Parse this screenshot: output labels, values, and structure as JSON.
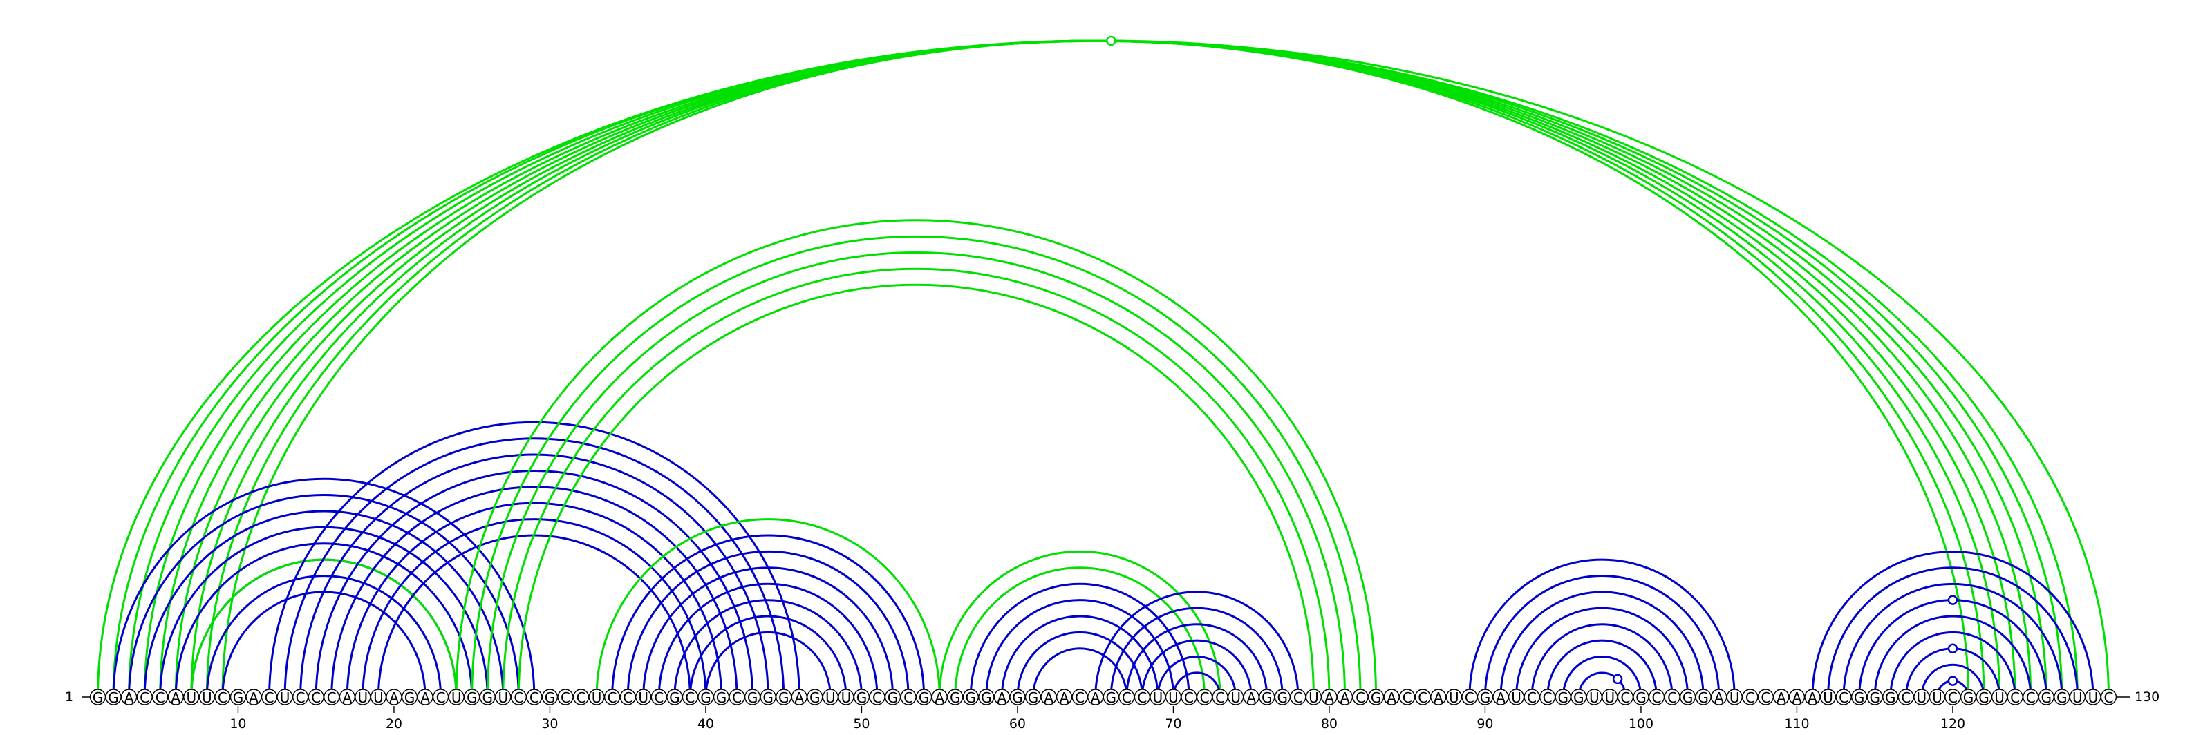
{
  "sequence": "GGACCAUUCGACUCCCAUUAGACUGGUCCGCCUCCUCGCGGCGGGAGUUGCGCGAGGGAGGAACAGCCUUCCCUAGGCUAACGACCAUCGAUCCGGUUCGCCGGAUCCAAAUCGGGCUUCGGUCCGGUUC",
  "start_label": "1",
  "end_label": "130",
  "ticks": [
    "10",
    "20",
    "30",
    "40",
    "50",
    "60",
    "70",
    "80",
    "90",
    "100",
    "110",
    "120"
  ],
  "colors": {
    "blue": "#0000cc",
    "green": "#00e000",
    "backbone": "#000000"
  },
  "pairs": [
    {
      "i": 1,
      "j": 130,
      "color": "green"
    },
    {
      "i": 2,
      "j": 128,
      "color": "green"
    },
    {
      "i": 3,
      "j": 127,
      "color": "green"
    },
    {
      "i": 4,
      "j": 126,
      "color": "green"
    },
    {
      "i": 5,
      "j": 125,
      "color": "green"
    },
    {
      "i": 6,
      "j": 124,
      "color": "green"
    },
    {
      "i": 7,
      "j": 123,
      "color": "green"
    },
    {
      "i": 8,
      "j": 122,
      "color": "green"
    },
    {
      "i": 9,
      "j": 121,
      "color": "green"
    },
    {
      "i": 2,
      "j": 29,
      "color": "blue"
    },
    {
      "i": 3,
      "j": 28,
      "color": "blue"
    },
    {
      "i": 4,
      "j": 27,
      "color": "blue"
    },
    {
      "i": 5,
      "j": 26,
      "color": "blue"
    },
    {
      "i": 6,
      "j": 25,
      "color": "blue"
    },
    {
      "i": 7,
      "j": 24,
      "color": "blue"
    },
    {
      "i": 8,
      "j": 23,
      "color": "blue"
    },
    {
      "i": 9,
      "j": 22,
      "color": "blue"
    },
    {
      "i": 7,
      "j": 24,
      "color": "green"
    },
    {
      "i": 12,
      "j": 46,
      "color": "blue"
    },
    {
      "i": 13,
      "j": 45,
      "color": "blue"
    },
    {
      "i": 14,
      "j": 44,
      "color": "blue"
    },
    {
      "i": 15,
      "j": 43,
      "color": "blue"
    },
    {
      "i": 16,
      "j": 42,
      "color": "blue"
    },
    {
      "i": 17,
      "j": 41,
      "color": "blue"
    },
    {
      "i": 18,
      "j": 40,
      "color": "blue"
    },
    {
      "i": 19,
      "j": 39,
      "color": "blue"
    },
    {
      "i": 24,
      "j": 83,
      "color": "green"
    },
    {
      "i": 25,
      "j": 82,
      "color": "green"
    },
    {
      "i": 26,
      "j": 81,
      "color": "green"
    },
    {
      "i": 27,
      "j": 80,
      "color": "green"
    },
    {
      "i": 28,
      "j": 79,
      "color": "green"
    },
    {
      "i": 33,
      "j": 55,
      "color": "green"
    },
    {
      "i": 34,
      "j": 54,
      "color": "blue"
    },
    {
      "i": 35,
      "j": 53,
      "color": "blue"
    },
    {
      "i": 36,
      "j": 52,
      "color": "blue"
    },
    {
      "i": 37,
      "j": 51,
      "color": "blue"
    },
    {
      "i": 38,
      "j": 50,
      "color": "blue"
    },
    {
      "i": 39,
      "j": 49,
      "color": "blue"
    },
    {
      "i": 40,
      "j": 48,
      "color": "blue"
    },
    {
      "i": 55,
      "j": 73,
      "color": "green"
    },
    {
      "i": 56,
      "j": 72,
      "color": "green"
    },
    {
      "i": 57,
      "j": 71,
      "color": "blue"
    },
    {
      "i": 58,
      "j": 70,
      "color": "blue"
    },
    {
      "i": 59,
      "j": 69,
      "color": "blue"
    },
    {
      "i": 60,
      "j": 68,
      "color": "blue"
    },
    {
      "i": 61,
      "j": 67,
      "color": "blue"
    },
    {
      "i": 65,
      "j": 78,
      "color": "blue"
    },
    {
      "i": 66,
      "j": 77,
      "color": "blue"
    },
    {
      "i": 67,
      "j": 76,
      "color": "blue"
    },
    {
      "i": 68,
      "j": 75,
      "color": "blue"
    },
    {
      "i": 69,
      "j": 74,
      "color": "blue"
    },
    {
      "i": 70,
      "j": 73,
      "color": "blue"
    },
    {
      "i": 89,
      "j": 106,
      "color": "blue"
    },
    {
      "i": 90,
      "j": 105,
      "color": "blue"
    },
    {
      "i": 91,
      "j": 104,
      "color": "blue"
    },
    {
      "i": 92,
      "j": 103,
      "color": "blue"
    },
    {
      "i": 93,
      "j": 102,
      "color": "blue"
    },
    {
      "i": 94,
      "j": 101,
      "color": "blue"
    },
    {
      "i": 95,
      "j": 100,
      "color": "blue"
    },
    {
      "i": 96,
      "j": 99,
      "color": "blue"
    },
    {
      "i": 111,
      "j": 129,
      "color": "blue"
    },
    {
      "i": 112,
      "j": 128,
      "color": "blue"
    },
    {
      "i": 113,
      "j": 127,
      "color": "blue"
    },
    {
      "i": 114,
      "j": 126,
      "color": "blue"
    },
    {
      "i": 115,
      "j": 125,
      "color": "blue"
    },
    {
      "i": 116,
      "j": 124,
      "color": "blue"
    },
    {
      "i": 117,
      "j": 123,
      "color": "blue"
    },
    {
      "i": 118,
      "j": 122,
      "color": "blue"
    },
    {
      "i": 119,
      "j": 121,
      "color": "blue"
    }
  ],
  "markers": [
    {
      "pos": 66,
      "arc": {
        "i": 1,
        "j": 130
      },
      "color": "green"
    },
    {
      "pos": 98.5,
      "arc": {
        "i": 96,
        "j": 99
      },
      "color": "blue"
    },
    {
      "pos": 120,
      "arc": {
        "i": 119,
        "j": 121
      },
      "color": "blue"
    },
    {
      "pos": 120,
      "arc": {
        "i": 117,
        "j": 123
      },
      "color": "blue"
    },
    {
      "pos": 120,
      "arc": {
        "i": 114,
        "j": 126
      },
      "color": "blue"
    }
  ]
}
